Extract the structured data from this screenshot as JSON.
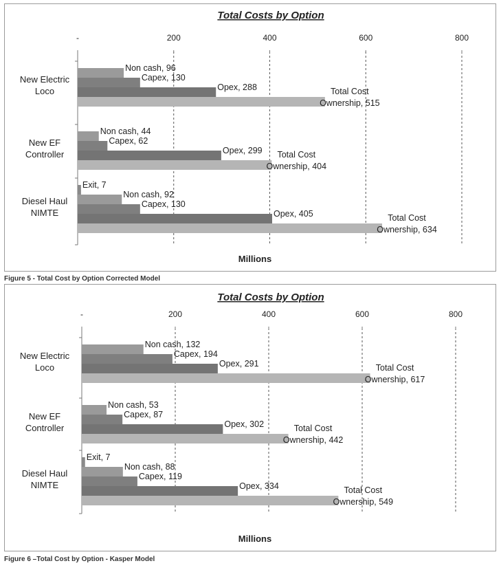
{
  "colors": {
    "noncash": "#9a9a9a",
    "capex": "#7f7f7f",
    "opex": "#747474",
    "total": "#b5b5b5",
    "exit": "#8a8a8a",
    "grid": "#555555",
    "axis": "#777777"
  },
  "captions": {
    "fig5": "Figure 5 - Total Cost by Option Corrected Model",
    "fig6": "Figure 6 –Total Cost by Option - Kasper Model"
  },
  "chart_data": [
    {
      "type": "bar",
      "orientation": "horizontal",
      "title": "Total Costs by Option",
      "xlabel": "Millions",
      "xlim": [
        0,
        800
      ],
      "xticks": [
        "-",
        "200",
        "400",
        "600",
        "800"
      ],
      "grid": "dashed vertical",
      "categories": [
        {
          "label": [
            "New Electric",
            "Loco"
          ],
          "bars": [
            {
              "series": "noncash",
              "name": "Non cash",
              "value": 96
            },
            {
              "series": "capex",
              "name": "Capex",
              "value": 130
            },
            {
              "series": "opex",
              "name": "Opex",
              "value": 288
            },
            {
              "series": "total",
              "name": "Total Cost Ownership",
              "value": 515
            }
          ]
        },
        {
          "label": [
            "New EF",
            "Controller"
          ],
          "bars": [
            {
              "series": "noncash",
              "name": "Non cash",
              "value": 44
            },
            {
              "series": "capex",
              "name": "Capex",
              "value": 62
            },
            {
              "series": "opex",
              "name": "Opex",
              "value": 299
            },
            {
              "series": "total",
              "name": "Total Cost Ownership",
              "value": 404
            }
          ]
        },
        {
          "label": [
            "Diesel Haul",
            "NIMTE"
          ],
          "bars": [
            {
              "series": "exit",
              "name": "Exit",
              "value": 7
            },
            {
              "series": "noncash",
              "name": "Non cash",
              "value": 92
            },
            {
              "series": "capex",
              "name": "Capex",
              "value": 130
            },
            {
              "series": "opex",
              "name": "Opex",
              "value": 405
            },
            {
              "series": "total",
              "name": "Total Cost Ownership",
              "value": 634
            }
          ]
        }
      ]
    },
    {
      "type": "bar",
      "orientation": "horizontal",
      "title": "Total Costs by Option",
      "xlabel": "Millions",
      "xlim": [
        0,
        800
      ],
      "xticks": [
        "-",
        "200",
        "400",
        "600",
        "800"
      ],
      "grid": "dashed vertical",
      "categories": [
        {
          "label": [
            "New Electric",
            "Loco"
          ],
          "bars": [
            {
              "series": "noncash",
              "name": "Non cash",
              "value": 132
            },
            {
              "series": "capex",
              "name": "Capex",
              "value": 194
            },
            {
              "series": "opex",
              "name": "Opex",
              "value": 291
            },
            {
              "series": "total",
              "name": "Total Cost Ownership",
              "value": 617
            }
          ]
        },
        {
          "label": [
            "New EF",
            "Controller"
          ],
          "bars": [
            {
              "series": "noncash",
              "name": "Non cash",
              "value": 53
            },
            {
              "series": "capex",
              "name": "Capex",
              "value": 87
            },
            {
              "series": "opex",
              "name": "Opex",
              "value": 302
            },
            {
              "series": "total",
              "name": "Total Cost Ownership",
              "value": 442
            }
          ]
        },
        {
          "label": [
            "Diesel Haul",
            "NIMTE"
          ],
          "bars": [
            {
              "series": "exit",
              "name": "Exit",
              "value": 7
            },
            {
              "series": "noncash",
              "name": "Non cash",
              "value": 88
            },
            {
              "series": "capex",
              "name": "Capex",
              "value": 119
            },
            {
              "series": "opex",
              "name": "Opex",
              "value": 334
            },
            {
              "series": "total",
              "name": "Total Cost Ownership",
              "value": 549
            }
          ]
        }
      ]
    }
  ]
}
